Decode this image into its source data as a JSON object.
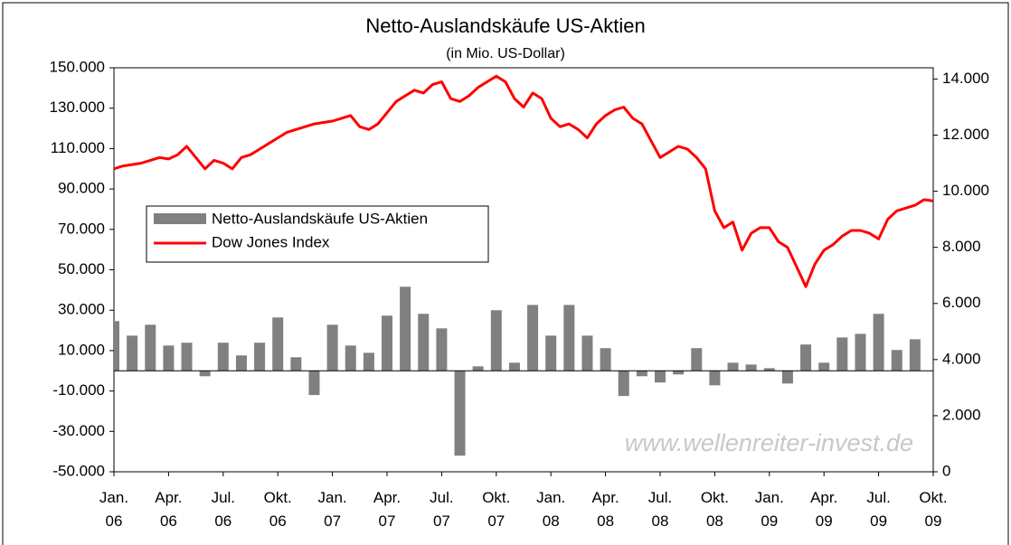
{
  "chart_data": {
    "type": "bar-line",
    "title": "Netto-Auslandskäufe US-Aktien",
    "subtitle": "(in Mio. US-Dollar)",
    "watermark": "www.wellenreiter-invest.de",
    "legend": "upper left",
    "xlim": [
      0,
      45
    ],
    "xticks": [
      {
        "value": 0,
        "label": "Jan. 06"
      },
      {
        "value": 3,
        "label": "Apr. 06"
      },
      {
        "value": 6,
        "label": "Jul. 06"
      },
      {
        "value": 9,
        "label": "Okt. 06"
      },
      {
        "value": 12,
        "label": "Jan. 07"
      },
      {
        "value": 15,
        "label": "Apr. 07"
      },
      {
        "value": 18,
        "label": "Jul. 07"
      },
      {
        "value": 21,
        "label": "Okt. 07"
      },
      {
        "value": 24,
        "label": "Jan. 08"
      },
      {
        "value": 27,
        "label": "Apr. 08"
      },
      {
        "value": 30,
        "label": "Jul. 08"
      },
      {
        "value": 33,
        "label": "Okt. 08"
      },
      {
        "value": 36,
        "label": "Jan. 09"
      },
      {
        "value": 39,
        "label": "Apr. 09"
      },
      {
        "value": 42,
        "label": "Jul. 09"
      },
      {
        "value": 45,
        "label": "Okt. 09"
      }
    ],
    "ylim": [
      -50000,
      150000
    ],
    "yticks": [
      {
        "value": -50000,
        "label": "-50.000"
      },
      {
        "value": -30000,
        "label": "-30.000"
      },
      {
        "value": -10000,
        "label": "-10.000"
      },
      {
        "value": 10000,
        "label": "10.000"
      },
      {
        "value": 30000,
        "label": "30.000"
      },
      {
        "value": 50000,
        "label": "50.000"
      },
      {
        "value": 70000,
        "label": "70.000"
      },
      {
        "value": 90000,
        "label": "90.000"
      },
      {
        "value": 110000,
        "label": "110.000"
      },
      {
        "value": 130000,
        "label": "130.000"
      },
      {
        "value": 150000,
        "label": "150.000"
      }
    ],
    "y2lim": [
      0,
      14400
    ],
    "y2ticks": [
      0,
      {
        "value": 2000,
        "label": "2.000"
      },
      {
        "value": 4000,
        "label": "4.000"
      },
      {
        "value": 6000,
        "label": "6.000"
      },
      {
        "value": 8000,
        "label": "8.000"
      },
      {
        "value": 10000,
        "label": "10.000"
      },
      {
        "value": 12000,
        "label": "12.000"
      },
      {
        "value": 14000,
        "label": "14.000"
      }
    ],
    "series": [
      {
        "name": "Netto-Auslandskäufe US-Aktien",
        "type": "bar",
        "color": "#808080",
        "x": [
          0,
          1,
          2,
          3,
          4,
          5,
          6,
          7,
          8,
          9,
          10,
          11,
          12,
          13,
          14,
          15,
          16,
          17,
          18,
          19,
          20,
          21,
          22,
          23,
          24,
          25,
          26,
          27,
          28,
          29,
          30,
          31,
          32,
          33,
          34,
          35,
          36,
          37,
          38,
          39,
          40,
          41,
          42,
          43,
          44
        ],
        "values": [
          24600,
          17400,
          22800,
          12500,
          13900,
          -2700,
          13900,
          7600,
          13900,
          26400,
          6700,
          -12000,
          22800,
          12500,
          8900,
          27300,
          41600,
          28200,
          21000,
          -42000,
          2200,
          30000,
          4000,
          32600,
          17400,
          32600,
          17400,
          11200,
          -12500,
          -2700,
          -5800,
          -1800,
          11200,
          -7200,
          4000,
          3100,
          1300,
          -6300,
          13000,
          4000,
          16500,
          18300,
          28200,
          10300,
          15600
        ]
      },
      {
        "name": "Dow Jones Index",
        "type": "line",
        "color": "#ff0000",
        "axis": "y2",
        "x": [
          0,
          0.5,
          1,
          1.5,
          2,
          2.5,
          3,
          3.5,
          4,
          4.5,
          5,
          5.5,
          6,
          6.5,
          7,
          7.5,
          8,
          8.5,
          9,
          9.5,
          10,
          10.5,
          11,
          11.5,
          12,
          12.5,
          13,
          13.5,
          14,
          14.5,
          15,
          15.5,
          16,
          16.5,
          17,
          17.5,
          18,
          18.5,
          19,
          19.5,
          20,
          20.5,
          21,
          21.5,
          22,
          22.5,
          23,
          23.5,
          24,
          24.5,
          25,
          25.5,
          26,
          26.5,
          27,
          27.5,
          28,
          28.5,
          29,
          29.5,
          30,
          30.5,
          31,
          31.5,
          32,
          32.5,
          33,
          33.5,
          34,
          34.5,
          35,
          35.5,
          36,
          36.5,
          37,
          37.5,
          38,
          38.5,
          39,
          39.5,
          40,
          40.5,
          41,
          41.5,
          42,
          42.5,
          43,
          43.5,
          44,
          44.5,
          45
        ],
        "values": [
          10800,
          10900,
          10950,
          11000,
          11100,
          11200,
          11150,
          11300,
          11600,
          11200,
          10800,
          11100,
          11000,
          10800,
          11200,
          11300,
          11500,
          11700,
          11900,
          12100,
          12200,
          12300,
          12400,
          12450,
          12500,
          12600,
          12700,
          12300,
          12200,
          12400,
          12800,
          13200,
          13400,
          13600,
          13500,
          13800,
          13900,
          13300,
          13200,
          13400,
          13700,
          13900,
          14100,
          13900,
          13300,
          13000,
          13500,
          13300,
          12600,
          12300,
          12400,
          12200,
          11900,
          12400,
          12700,
          12900,
          13000,
          12600,
          12400,
          11800,
          11200,
          11400,
          11600,
          11500,
          11200,
          10800,
          9300,
          8700,
          8900,
          7900,
          8500,
          8700,
          8700,
          8200,
          8000,
          7300,
          6600,
          7400,
          7900,
          8100,
          8400,
          8600,
          8600,
          8500,
          8300,
          9000,
          9300,
          9400,
          9500,
          9700,
          9650
        ]
      }
    ]
  }
}
